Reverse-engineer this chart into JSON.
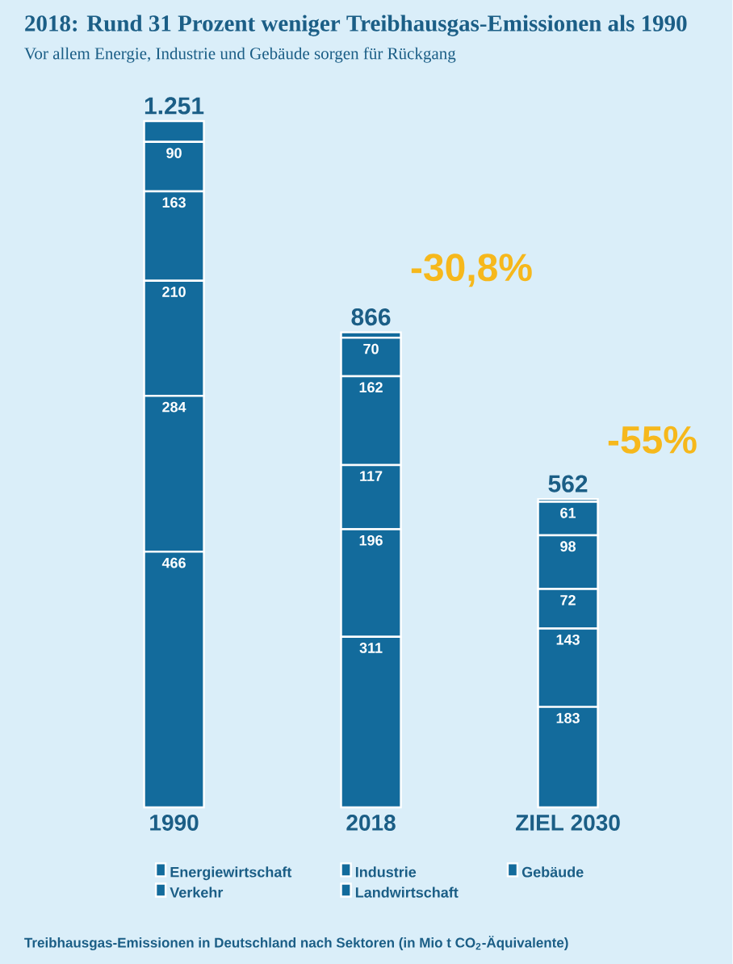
{
  "chart_data": {
    "type": "bar",
    "stacked": true,
    "title": "2018: Rund 31 Prozent weniger Treibhausgas-Emissionen als 1990",
    "subtitle": "Vor allem Energie, Industrie und Gebäude sorgen für Rückgang",
    "categories": [
      "1990",
      "2018",
      "ZIEL 2030"
    ],
    "series": [
      {
        "name": "Energiewirtschaft",
        "color": "#136b9c",
        "values": [
          466,
          311,
          183
        ],
        "value_labels": [
          "466",
          "311",
          "183"
        ]
      },
      {
        "name": "Industrie",
        "color": "#136b9c",
        "values": [
          284,
          196,
          143
        ],
        "value_labels": [
          "284",
          "196",
          "143"
        ]
      },
      {
        "name": "Gebäude",
        "color": "#136b9c",
        "values": [
          210,
          117,
          72
        ],
        "value_labels": [
          "210",
          "117",
          "72"
        ]
      },
      {
        "name": "Verkehr",
        "color": "#136b9c",
        "values": [
          163,
          162,
          98
        ],
        "value_labels": [
          "163",
          "162",
          "98"
        ]
      },
      {
        "name": "Landwirtschaft",
        "color": "#136b9c",
        "values": [
          90,
          70,
          61
        ],
        "value_labels": [
          "90",
          "70",
          "61"
        ]
      },
      {
        "color": "#136b9c",
        "values": [
          38,
          10,
          5
        ]
      }
    ],
    "totals": [
      "1.251",
      "866",
      "562"
    ],
    "annotations": [
      {
        "text": "-30,8%",
        "x": "2018",
        "y": 866
      },
      {
        "text": "-55%",
        "x": "ZIEL 2030",
        "y": 562
      },
      "Treibhausgas-Emissionen in Deutschland nach Sektoren (in Mio t CO$_{2}$-Äquivalente)"
    ],
    "tick_labels": "x",
    "legend": "bottom"
  }
}
